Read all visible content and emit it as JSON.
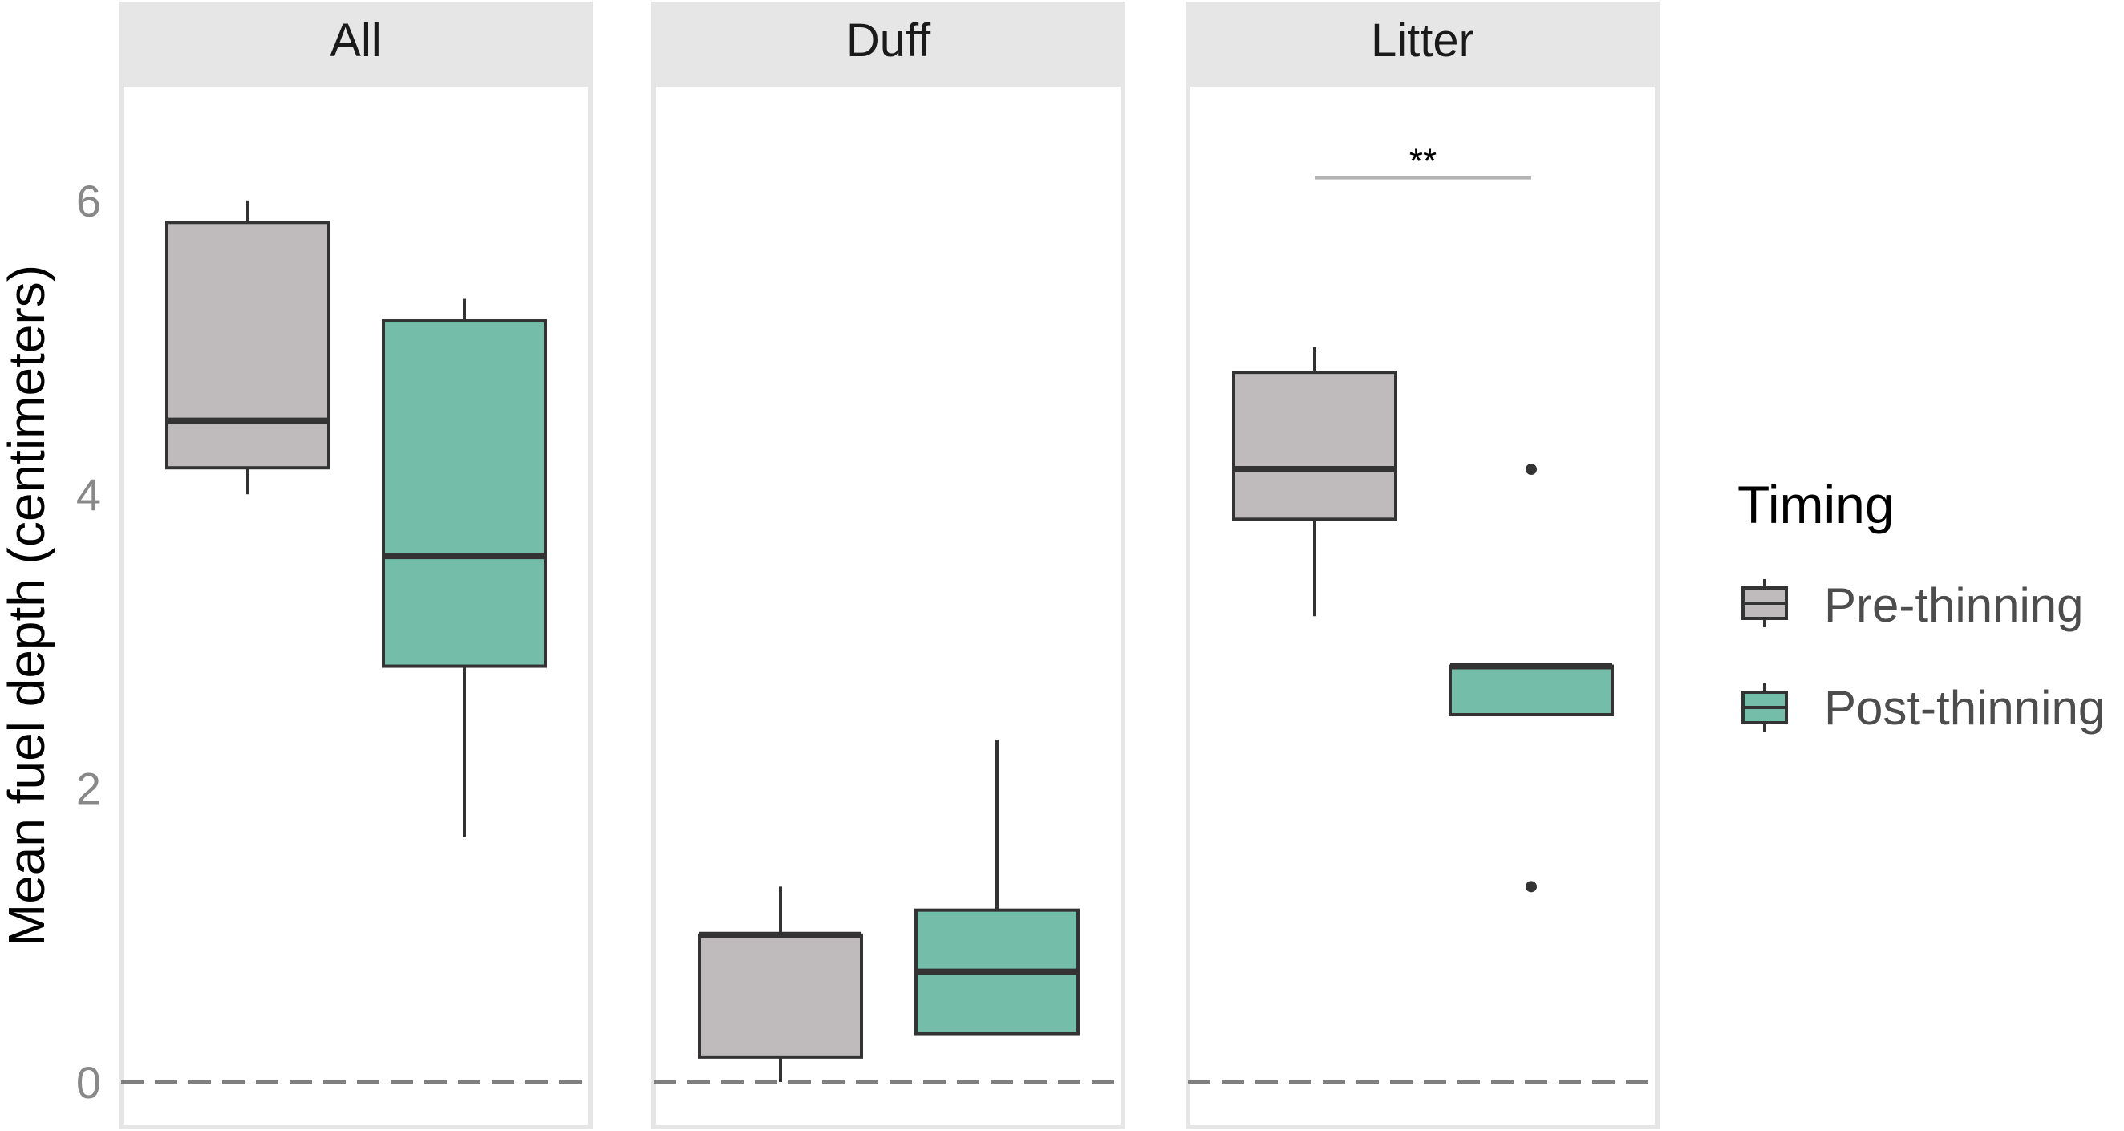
{
  "chart_data": {
    "type": "boxplot",
    "ylabel": "Mean fuel depth (centimeters)",
    "ylim": [
      0,
      7
    ],
    "yticks": [
      0,
      2,
      4,
      6
    ],
    "reference_line": 0,
    "facets": [
      {
        "label": "All",
        "boxes": [
          {
            "group": "Pre-thinning",
            "min": 4.0,
            "q1": 4.18,
            "median": 4.5,
            "q3": 5.85,
            "max": 6.0,
            "outliers": []
          },
          {
            "group": "Post-thinning",
            "min": 1.67,
            "q1": 2.83,
            "median": 3.58,
            "q3": 5.18,
            "max": 5.33,
            "outliers": []
          }
        ]
      },
      {
        "label": "Duff",
        "boxes": [
          {
            "group": "Pre-thinning",
            "min": 0.0,
            "q1": 0.17,
            "median": 1.0,
            "q3": 1.0,
            "max": 1.33,
            "outliers": []
          },
          {
            "group": "Post-thinning",
            "min": 0.33,
            "q1": 0.33,
            "median": 0.75,
            "q3": 1.17,
            "max": 2.33,
            "outliers": []
          }
        ]
      },
      {
        "label": "Litter",
        "boxes": [
          {
            "group": "Pre-thinning",
            "min": 3.17,
            "q1": 3.83,
            "median": 4.17,
            "q3": 4.83,
            "max": 5.0,
            "outliers": []
          },
          {
            "group": "Post-thinning",
            "min": 2.5,
            "q1": 2.5,
            "median": 2.83,
            "q3": 2.83,
            "max": 2.83,
            "outliers": [
              4.17,
              1.33
            ]
          }
        ],
        "significance": {
          "label": "**",
          "y": 6.17
        }
      }
    ],
    "legend": {
      "title": "Timing",
      "position": "right",
      "entries": [
        {
          "label": "Pre-thinning",
          "color": "#bfbbbc"
        },
        {
          "label": "Post-thinning",
          "color": "#74bda8"
        }
      ]
    },
    "colors": {
      "strip_background": "#e6e6e6",
      "panel_border": "#e6e6e6",
      "box_stroke": "#333333",
      "zero_line": "#7f7f7f",
      "significance_line": "#b3b3b3"
    }
  }
}
